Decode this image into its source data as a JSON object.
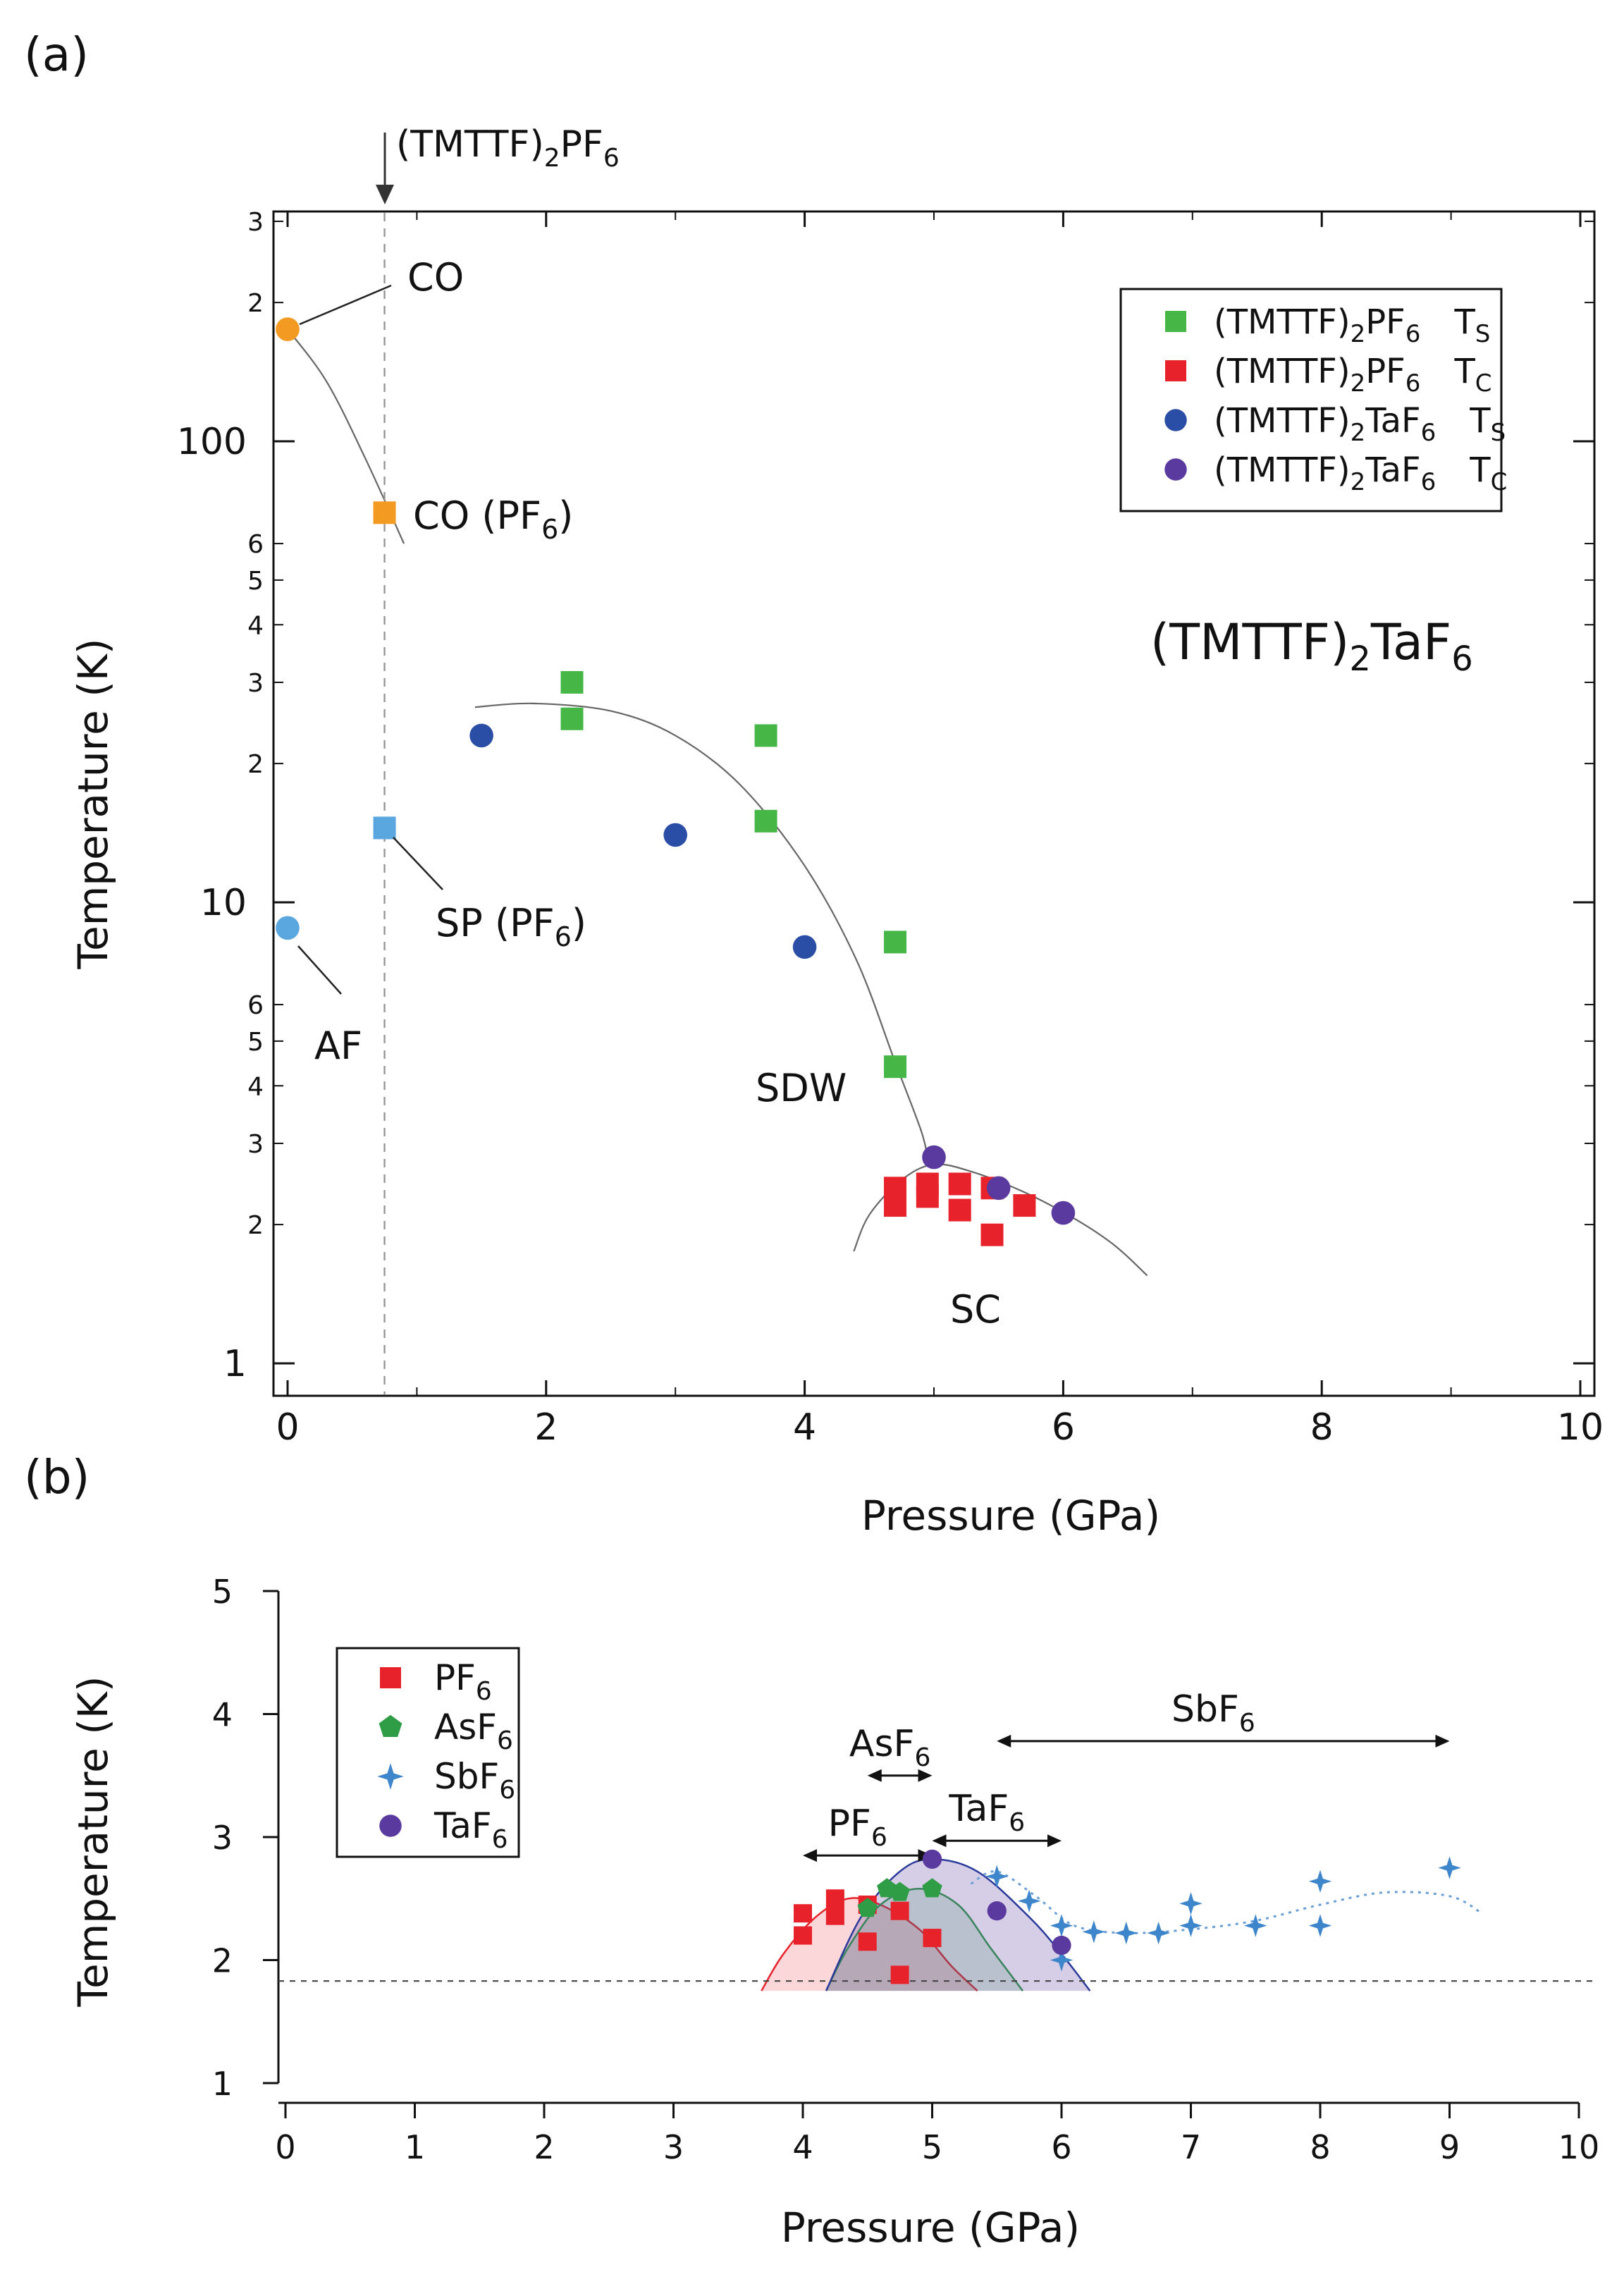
{
  "panels": {
    "a": "(a)",
    "b": "(b)"
  },
  "colors": {
    "pf6_ts": "#46b747",
    "pf6_tc": "#e8222a",
    "taf6_ts": "#2a4ea6",
    "taf6_tc": "#5b3aa0",
    "co": "#f39a22",
    "sp_af": "#5aa7e0",
    "asf6": "#2f9c46",
    "sbf6": "#3d86cc"
  },
  "chart_data": [
    {
      "id": "a",
      "type": "scatter",
      "title": "(TMTTF)₂TaF₆",
      "title_parts": {
        "main": "(TMTTF)",
        "s1": "2",
        "mid": "TaF",
        "s2": "6"
      },
      "xlabel": "Pressure (GPa)",
      "ylabel": "Temperature (K)",
      "xlim": [
        -0.1,
        10
      ],
      "ylim": [
        0.98,
        330
      ],
      "yscale": "log",
      "x_ticks": [
        "0",
        "2",
        "4",
        "6",
        "8",
        "10"
      ],
      "y_major_ticks": [
        "1",
        "10",
        "100"
      ],
      "y_minor_ticks": [
        "2",
        "3",
        "4",
        "5",
        "6",
        "2",
        "3",
        "4",
        "5",
        "6",
        "2",
        "3"
      ],
      "marker_label": {
        "main": "(TMTTF)",
        "s1": "2",
        "mid": "PF",
        "s2": "6"
      },
      "marker_x": 0.75,
      "region_labels": {
        "co": "CO",
        "co_pf6": "CO (PF",
        "co_pf6_sub": "6",
        "co_pf6_end": ")",
        "sp_pf6": "SP (PF",
        "sp_pf6_sub": "6",
        "sp_pf6_end": ")",
        "af": "AF",
        "sdw": "SDW",
        "sc": "SC"
      },
      "legend": [
        {
          "prefix": "(TMTTF)",
          "s1": "2",
          "mid": "PF",
          "s2": "6",
          "sym": "T",
          "sub": "S",
          "shape": "square",
          "color": "#46b747"
        },
        {
          "prefix": "(TMTTF)",
          "s1": "2",
          "mid": "PF",
          "s2": "6",
          "sym": "T",
          "sub": "C",
          "shape": "square",
          "color": "#e8222a"
        },
        {
          "prefix": "(TMTTF)",
          "s1": "2",
          "mid": "TaF",
          "s2": "6",
          "sym": "T",
          "sub": "S",
          "shape": "circle",
          "color": "#2a4ea6"
        },
        {
          "prefix": "(TMTTF)",
          "s1": "2",
          "mid": "TaF",
          "s2": "6",
          "sym": "T",
          "sub": "C",
          "shape": "circle",
          "color": "#5b3aa0"
        }
      ],
      "series": [
        {
          "name": "(TMTTF)2PF6 Ts",
          "shape": "square",
          "color": "#46b747",
          "points": [
            [
              2.2,
              30
            ],
            [
              2.2,
              25
            ],
            [
              3.7,
              23
            ],
            [
              3.7,
              15
            ],
            [
              4.7,
              8.2
            ],
            [
              4.7,
              4.4
            ]
          ]
        },
        {
          "name": "(TMTTF)2PF6 Tc",
          "shape": "square",
          "color": "#e8222a",
          "points": [
            [
              4.7,
              2.4
            ],
            [
              4.7,
              2.2
            ],
            [
              4.95,
              2.45
            ],
            [
              4.95,
              2.3
            ],
            [
              5.2,
              2.45
            ],
            [
              5.2,
              2.15
            ],
            [
              5.45,
              2.4
            ],
            [
              5.45,
              1.9
            ],
            [
              5.7,
              2.2
            ]
          ]
        },
        {
          "name": "(TMTTF)2TaF6 Ts",
          "shape": "circle",
          "color": "#2a4ea6",
          "points": [
            [
              1.5,
              23
            ],
            [
              3.0,
              14
            ],
            [
              4.0,
              8.0
            ]
          ]
        },
        {
          "name": "(TMTTF)2TaF6 Tc",
          "shape": "circle",
          "color": "#5b3aa0",
          "points": [
            [
              5.0,
              2.8
            ],
            [
              5.5,
              2.4
            ],
            [
              6.0,
              2.12
            ]
          ]
        },
        {
          "name": "CO",
          "shape": "circle",
          "color": "#f39a22",
          "points": [
            [
              0,
              175
            ]
          ]
        },
        {
          "name": "CO (PF6)",
          "shape": "square",
          "color": "#f39a22",
          "points": [
            [
              0.75,
              70
            ]
          ]
        },
        {
          "name": "SP (PF6)",
          "shape": "square",
          "color": "#5aa7e0",
          "points": [
            [
              0.75,
              14.5
            ]
          ]
        },
        {
          "name": "AF",
          "shape": "circle",
          "color": "#5aa7e0",
          "points": [
            [
              0,
              8.8
            ]
          ]
        }
      ],
      "guide_lines": [
        {
          "name": "co-boundary",
          "points": [
            [
              0,
              175
            ],
            [
              0.3,
              135
            ],
            [
              0.6,
              92
            ],
            [
              0.9,
              60
            ]
          ]
        },
        {
          "name": "sdw-boundary",
          "points": [
            [
              1.45,
              26.5
            ],
            [
              1.9,
              27
            ],
            [
              2.5,
              26
            ],
            [
              3.0,
              23
            ],
            [
              3.5,
              18
            ],
            [
              4.0,
              12
            ],
            [
              4.4,
              7.5
            ],
            [
              4.7,
              4.5
            ],
            [
              4.9,
              3.2
            ],
            [
              4.95,
              2.8
            ]
          ]
        },
        {
          "name": "sc-dome",
          "points": [
            [
              4.38,
              1.75
            ],
            [
              4.5,
              2.1
            ],
            [
              4.75,
              2.5
            ],
            [
              5.0,
              2.7
            ],
            [
              5.3,
              2.6
            ],
            [
              5.7,
              2.35
            ],
            [
              6.1,
              2.05
            ],
            [
              6.4,
              1.8
            ],
            [
              6.65,
              1.55
            ]
          ]
        }
      ]
    },
    {
      "id": "b",
      "type": "scatter",
      "xlabel": "Pressure (GPa)",
      "ylabel": "Temperature (K)",
      "xlim": [
        -0.1,
        10
      ],
      "ylim": [
        1,
        5
      ],
      "x_ticks": [
        "0",
        "1",
        "2",
        "3",
        "4",
        "5",
        "6",
        "7",
        "8",
        "9",
        "10"
      ],
      "y_ticks": [
        "1",
        "2",
        "3",
        "4",
        "5"
      ],
      "baseline_T": 1.83,
      "legend": [
        {
          "mid": "PF",
          "s2": "6",
          "shape": "square",
          "color": "#e8222a"
        },
        {
          "mid": "AsF",
          "s2": "6",
          "shape": "pentagon",
          "color": "#2f9c46"
        },
        {
          "mid": "SbF",
          "s2": "6",
          "shape": "star",
          "color": "#3d86cc"
        },
        {
          "mid": "TaF",
          "s2": "6",
          "shape": "circle",
          "color": "#5b3aa0"
        }
      ],
      "ranges": [
        {
          "mid": "PF",
          "s2": "6",
          "from": 4.0,
          "to": 5.0,
          "y": 2.85
        },
        {
          "mid": "AsF",
          "s2": "6",
          "from": 4.5,
          "to": 5.0,
          "y": 3.5
        },
        {
          "mid": "TaF",
          "s2": "6",
          "from": 5.0,
          "to": 6.0,
          "y": 2.97
        },
        {
          "mid": "SbF",
          "s2": "6",
          "from": 5.5,
          "to": 9.0,
          "y": 3.78
        }
      ],
      "domes": [
        {
          "name": "pf6-dome",
          "color": "#e8222a",
          "fill": "rgba(232,34,42,0.18)",
          "points": [
            [
              3.68,
              1.75
            ],
            [
              3.85,
              2.05
            ],
            [
              4.1,
              2.35
            ],
            [
              4.35,
              2.5
            ],
            [
              4.6,
              2.45
            ],
            [
              4.9,
              2.25
            ],
            [
              5.15,
              1.95
            ],
            [
              5.35,
              1.75
            ]
          ]
        },
        {
          "name": "asf6-dome",
          "color": "#2f9c46",
          "fill": "rgba(47,156,70,0.18)",
          "points": [
            [
              4.18,
              1.75
            ],
            [
              4.35,
              2.1
            ],
            [
              4.6,
              2.45
            ],
            [
              4.9,
              2.58
            ],
            [
              5.2,
              2.45
            ],
            [
              5.45,
              2.1
            ],
            [
              5.7,
              1.75
            ]
          ]
        },
        {
          "name": "taf6-dome",
          "color": "#2a3a9a",
          "fill": "rgba(91,58,160,0.25)",
          "points": [
            [
              4.18,
              1.75
            ],
            [
              4.45,
              2.35
            ],
            [
              4.75,
              2.72
            ],
            [
              5.0,
              2.82
            ],
            [
              5.35,
              2.72
            ],
            [
              5.75,
              2.35
            ],
            [
              6.0,
              2.05
            ],
            [
              6.22,
              1.75
            ]
          ]
        }
      ],
      "sbf6_curve": [
        [
          5.3,
          2.62
        ],
        [
          5.5,
          2.72
        ],
        [
          5.8,
          2.52
        ],
        [
          6.1,
          2.28
        ],
        [
          6.5,
          2.22
        ],
        [
          7.0,
          2.25
        ],
        [
          7.5,
          2.32
        ],
        [
          8.0,
          2.45
        ],
        [
          8.5,
          2.55
        ],
        [
          9.0,
          2.52
        ],
        [
          9.25,
          2.38
        ]
      ],
      "series": [
        {
          "name": "PF6",
          "shape": "square",
          "color": "#e8222a",
          "points": [
            [
              4.0,
              2.38
            ],
            [
              4.0,
              2.2
            ],
            [
              4.25,
              2.5
            ],
            [
              4.25,
              2.36
            ],
            [
              4.5,
              2.45
            ],
            [
              4.5,
              2.15
            ],
            [
              4.75,
              2.4
            ],
            [
              4.75,
              1.88
            ],
            [
              5.0,
              2.18
            ]
          ]
        },
        {
          "name": "AsF6",
          "shape": "pentagon",
          "color": "#2f9c46",
          "points": [
            [
              4.5,
              2.42
            ],
            [
              4.65,
              2.58
            ],
            [
              4.75,
              2.55
            ],
            [
              5.0,
              2.58
            ]
          ]
        },
        {
          "name": "SbF6",
          "shape": "star",
          "color": "#3d86cc",
          "points": [
            [
              5.5,
              2.68
            ],
            [
              5.75,
              2.48
            ],
            [
              6.0,
              2.28
            ],
            [
              6.0,
              2.0
            ],
            [
              6.25,
              2.23
            ],
            [
              6.5,
              2.22
            ],
            [
              6.75,
              2.22
            ],
            [
              7.0,
              2.46
            ],
            [
              7.0,
              2.28
            ],
            [
              7.5,
              2.28
            ],
            [
              8.0,
              2.64
            ],
            [
              8.0,
              2.28
            ],
            [
              9.0,
              2.75
            ]
          ]
        },
        {
          "name": "TaF6",
          "shape": "circle",
          "color": "#5b3aa0",
          "points": [
            [
              5.0,
              2.82
            ],
            [
              5.5,
              2.4
            ],
            [
              6.0,
              2.12
            ]
          ]
        }
      ]
    }
  ]
}
